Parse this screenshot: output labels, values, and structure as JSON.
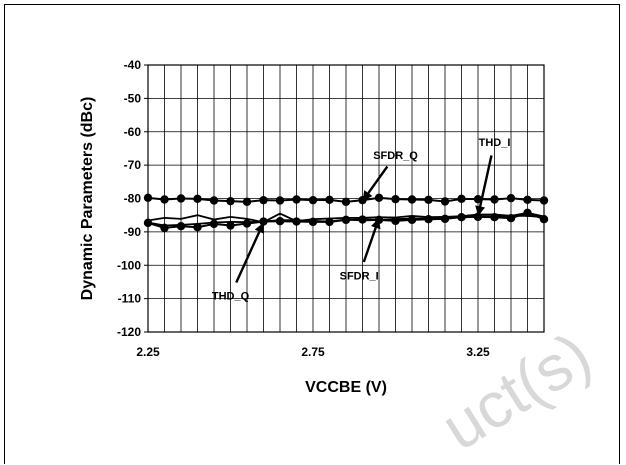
{
  "chart_data": {
    "type": "line",
    "title": "",
    "xlabel": "VCCBE (V)",
    "ylabel": "Dynamic Parameters (dBc)",
    "xlim": [
      2.25,
      3.45
    ],
    "ylim": [
      -120,
      -40
    ],
    "x_ticks": [
      2.25,
      2.75,
      3.25
    ],
    "x_tick_labels": [
      "2.25",
      "2.75",
      "3.25"
    ],
    "y_ticks": [
      -40,
      -50,
      -60,
      -70,
      -80,
      -90,
      -100,
      -110,
      -120
    ],
    "grid": true,
    "x": [
      2.25,
      2.3,
      2.35,
      2.4,
      2.45,
      2.5,
      2.55,
      2.6,
      2.65,
      2.7,
      2.75,
      2.8,
      2.85,
      2.9,
      2.95,
      3.0,
      3.05,
      3.1,
      3.15,
      3.2,
      3.25,
      3.3,
      3.35,
      3.4,
      3.45
    ],
    "series": [
      {
        "name": "SFDR_Q",
        "marker": "circle",
        "values": [
          -79.8,
          -80.3,
          -80.0,
          -80.1,
          -80.6,
          -80.8,
          -81.0,
          -80.5,
          -80.6,
          -80.3,
          -80.5,
          -80.4,
          -81.0,
          -80.5,
          -79.8,
          -80.2,
          -80.3,
          -80.4,
          -80.9,
          -80.1,
          -80.2,
          -80.3,
          -79.9,
          -80.4,
          -80.6
        ]
      },
      {
        "name": "THD_Q",
        "marker": "circle",
        "values": [
          -87.3,
          -88.8,
          -88.3,
          -88.6,
          -87.6,
          -88.1,
          -87.5,
          -86.9,
          -86.8,
          -86.9,
          -87.0,
          -87.0,
          -86.4,
          -86.3,
          -86.4,
          -86.7,
          -86.4,
          -86.2,
          -86.1,
          -85.6,
          -85.5,
          -85.6,
          -85.9,
          -84.3,
          -86.2
        ]
      },
      {
        "name": "SFDR_I",
        "marker": "none",
        "values": [
          -86.6,
          -85.8,
          -86.1,
          -85.0,
          -86.3,
          -85.5,
          -86.1,
          -87.1,
          -84.5,
          -86.8,
          -86.2,
          -86.0,
          -85.8,
          -85.8,
          -85.6,
          -85.7,
          -85.2,
          -85.6,
          -85.5,
          -85.3,
          -84.8,
          -84.8,
          -85.2,
          -84.3,
          -85.4
        ]
      },
      {
        "name": "THD_I",
        "marker": "none",
        "values": [
          -87.2,
          -88.1,
          -87.9,
          -87.6,
          -87.2,
          -87.0,
          -87.1,
          -86.9,
          -86.5,
          -86.5,
          -86.7,
          -86.9,
          -86.3,
          -86.6,
          -86.4,
          -86.2,
          -86.0,
          -86.0,
          -85.5,
          -85.7,
          -85.3,
          -85.4,
          -85.2,
          -85.2,
          -85.6
        ]
      }
    ],
    "annotations": [
      {
        "label": "SFDR_Q",
        "text_x": 3.0,
        "text_y": -67,
        "arrow_x": 2.9,
        "arrow_y": -80.8
      },
      {
        "label": "THD_I",
        "text_x": 3.3,
        "text_y": -63,
        "arrow_x": 3.25,
        "arrow_y": -85.3
      },
      {
        "label": "THD_Q",
        "text_x": 2.5,
        "text_y": -109,
        "arrow_x": 2.6,
        "arrow_y": -87.2
      },
      {
        "label": "SFDR_I",
        "text_x": 2.89,
        "text_y": -103,
        "arrow_x": 2.95,
        "arrow_y": -85.9
      }
    ]
  },
  "watermark": "uct(s)"
}
